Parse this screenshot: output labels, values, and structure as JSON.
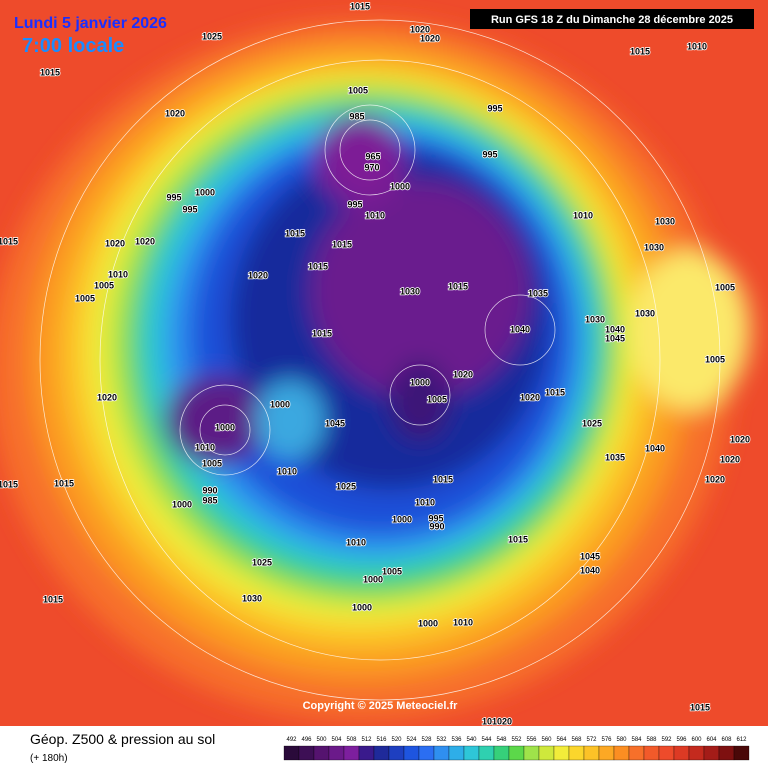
{
  "header": {
    "date": "Lundi 5 janvier 2026",
    "time": "7:00 locale",
    "run": "Run GFS 18 Z du Dimanche 28 décembre 2025"
  },
  "copyright": "Copyright © 2025 Meteociel.fr",
  "footer": {
    "title": "Géop. Z500 & pression au sol",
    "lead": "(+ 180h)"
  },
  "scale": [
    492,
    496,
    500,
    504,
    508,
    512,
    516,
    520,
    524,
    528,
    532,
    536,
    540,
    544,
    548,
    552,
    556,
    560,
    564,
    568,
    572,
    576,
    580,
    584,
    588,
    592,
    596,
    600,
    604,
    608,
    612
  ],
  "isobars": [
    "1015",
    "1020",
    "1020",
    "1025",
    "1010",
    "1015",
    "1015",
    "1020",
    "1005",
    "985",
    "995",
    "995",
    "965",
    "970",
    "1000",
    "995",
    "1010",
    "1000",
    "995",
    "995",
    "1010",
    "1030",
    "1030",
    "1015",
    "1015",
    "1020",
    "1020",
    "1015",
    "1020",
    "1015",
    "1010",
    "1005",
    "1005",
    "1030",
    "1015",
    "1035",
    "1005",
    "1040",
    "1030",
    "1040",
    "1045",
    "1030",
    "1015",
    "1020",
    "1000",
    "1005",
    "1005",
    "1015",
    "1020",
    "1020",
    "1000",
    "1025",
    "1045",
    "1000",
    "1010",
    "1005",
    "1040",
    "1035",
    "1020",
    "1020",
    "1020",
    "1010",
    "1015",
    "1025",
    "1015",
    "1015",
    "990",
    "985",
    "1000",
    "1010",
    "995",
    "990",
    "1000",
    "1010",
    "1015",
    "1005",
    "1000",
    "1045",
    "1040",
    "1025",
    "1030",
    "1015",
    "1000",
    "1000",
    "1010",
    "1015",
    "101020"
  ]
}
